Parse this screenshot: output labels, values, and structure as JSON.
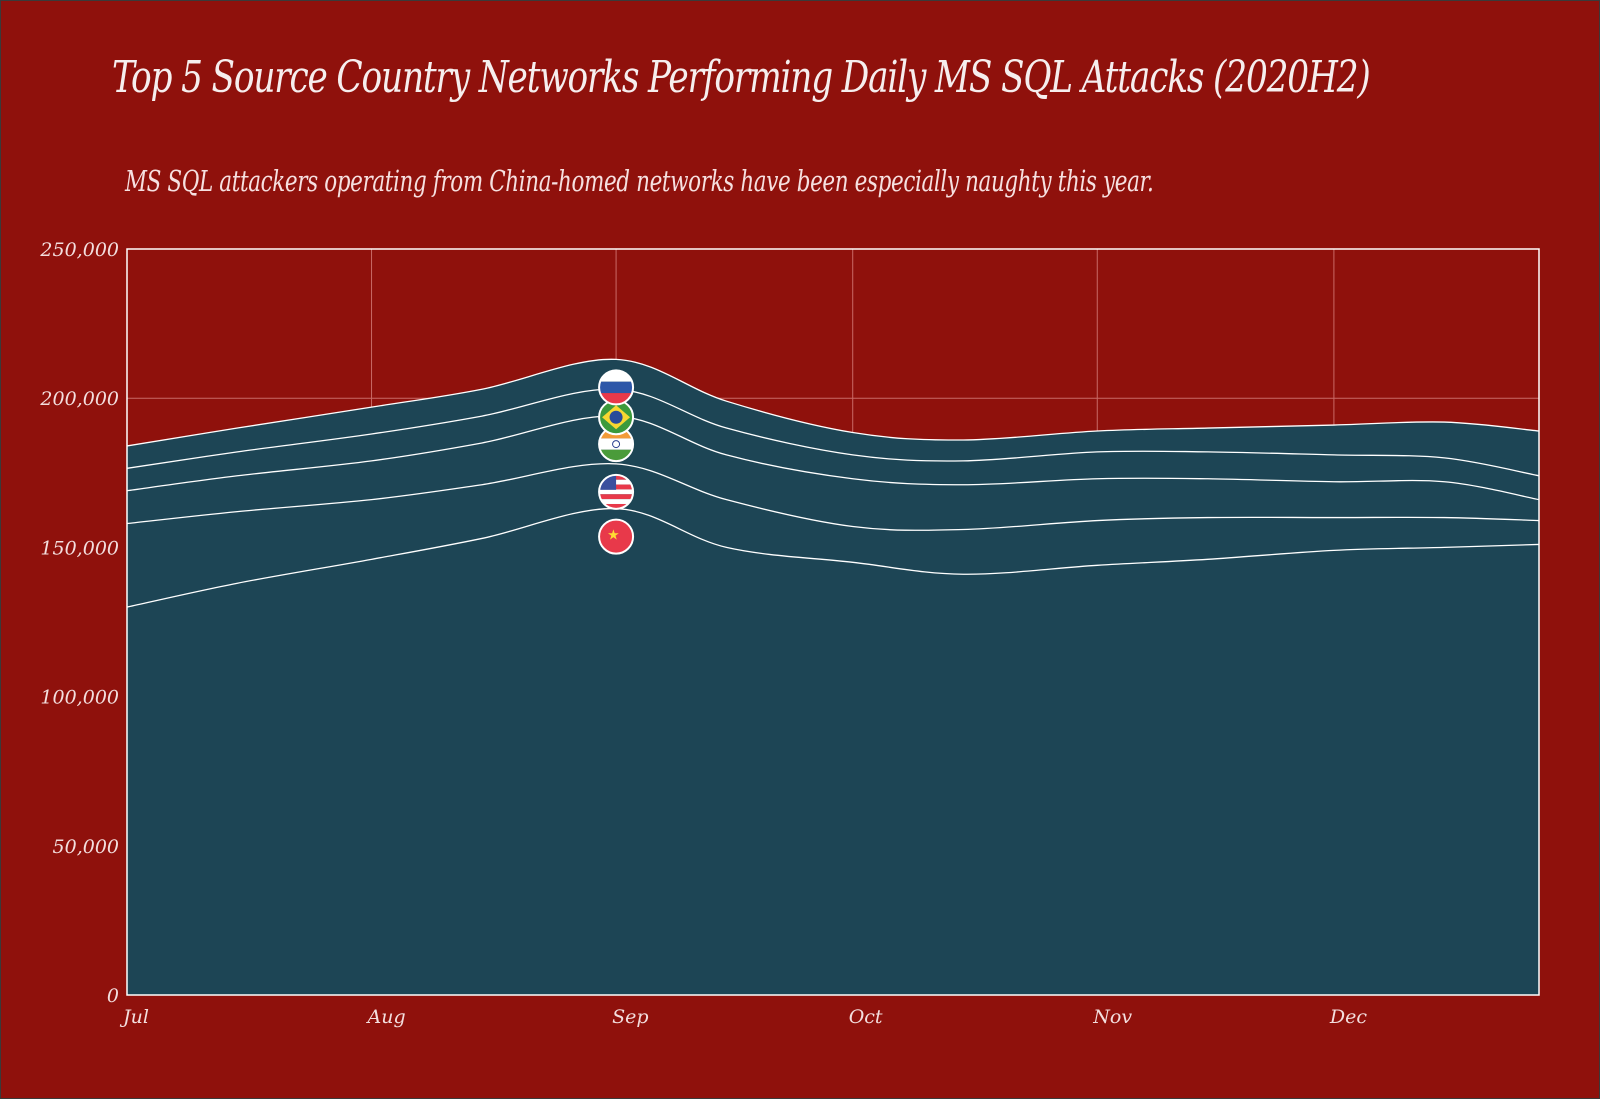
{
  "colors": {
    "background": "#8f110c",
    "area_fill": "#1d4555",
    "line": "#ffffff",
    "grid": "#c96a66",
    "text": "#f6eeee"
  },
  "chart_data": {
    "type": "area",
    "stacked": true,
    "title": "Top 5 Source Country Networks Performing Daily MS SQL Attacks (2020H2)",
    "subtitle": "MS SQL attackers operating from China-homed networks have been especially naughty this year.",
    "xlabel": "",
    "ylabel": "",
    "x_ticks": [
      "Jul",
      "Aug",
      "Sep",
      "Oct",
      "Nov",
      "Dec"
    ],
    "x_dates": [
      "2020-07-01",
      "2020-07-15",
      "2020-08-01",
      "2020-08-15",
      "2020-09-01",
      "2020-09-15",
      "2020-10-01",
      "2020-10-15",
      "2020-11-01",
      "2020-11-15",
      "2020-12-01",
      "2020-12-15",
      "2020-12-27"
    ],
    "xlim": [
      "2020-07-01",
      "2020-12-27"
    ],
    "ylim": [
      0,
      250000
    ],
    "y_ticks": [
      "0",
      "50,000",
      "100,000",
      "150,000",
      "200,000",
      "250,000"
    ],
    "grid": true,
    "legend": "flag icons stacked vertically at Sep",
    "series": [
      {
        "flag": "china-flag-icon",
        "values": [
          130000,
          138000,
          146000,
          153000,
          163000,
          150000,
          145000,
          141000,
          144000,
          146000,
          149000,
          150000,
          151000
        ]
      },
      {
        "flag": "usa-flag-icon",
        "values": [
          28000,
          24000,
          20000,
          18000,
          15000,
          16000,
          12000,
          15000,
          15000,
          14000,
          11000,
          10000,
          8000
        ]
      },
      {
        "flag": "india-flag-icon",
        "values": [
          11000,
          12000,
          13000,
          14000,
          16000,
          15000,
          16000,
          15000,
          14000,
          13000,
          12000,
          12000,
          7000
        ]
      },
      {
        "flag": "brazil-flag-icon",
        "values": [
          7500,
          8000,
          9000,
          9000,
          9000,
          9000,
          8000,
          8000,
          9000,
          9000,
          9000,
          8000,
          8000
        ]
      },
      {
        "flag": "russia-flag-icon",
        "values": [
          7500,
          8000,
          9000,
          9000,
          10000,
          9000,
          7500,
          7000,
          7000,
          8000,
          10000,
          12000,
          15000
        ]
      }
    ]
  }
}
